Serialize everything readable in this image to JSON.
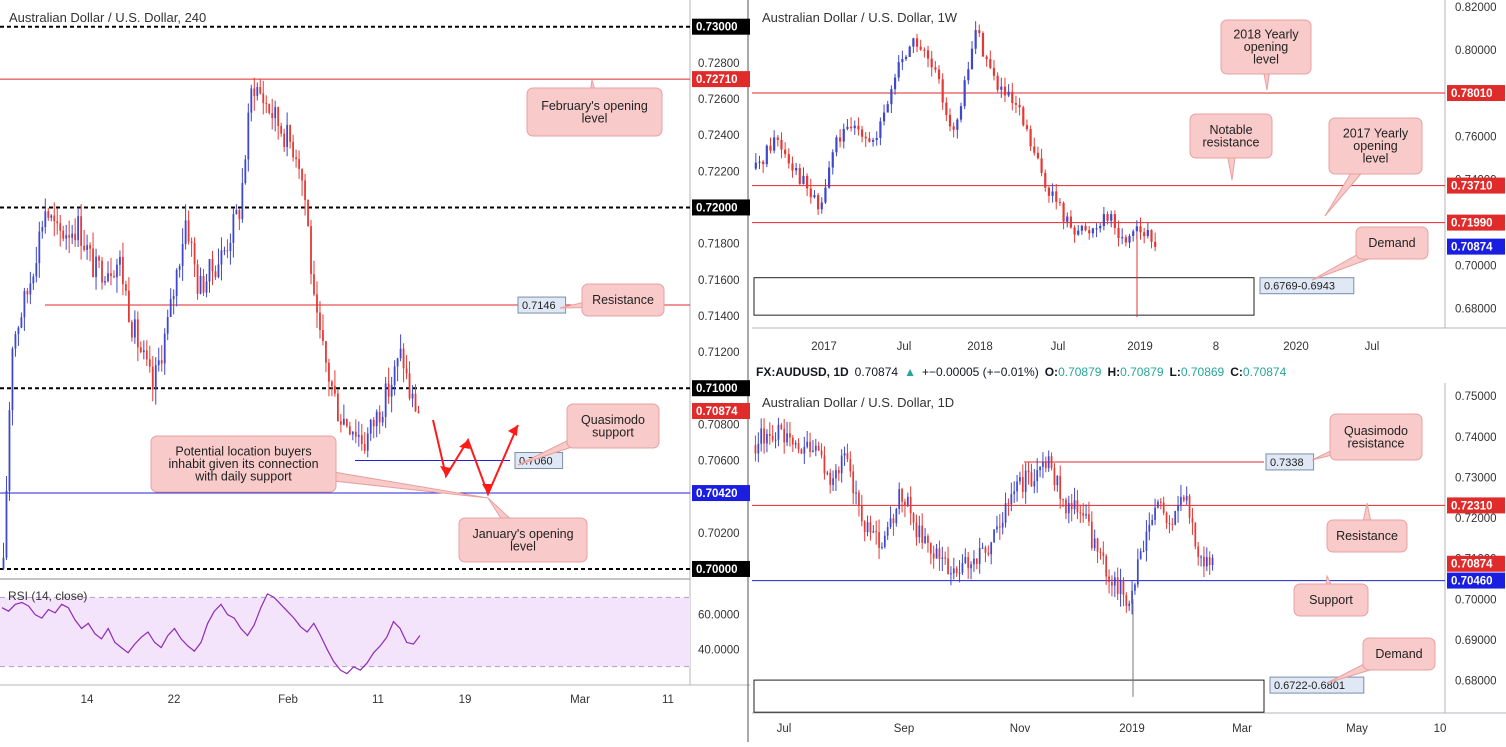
{
  "colors": {
    "bull": "#3f48cc",
    "bear": "#e53935",
    "resistance_line": "#e0272b",
    "support_line": "#1f23d6",
    "callout_fill": "#f8caca",
    "callout_stroke": "#e8a0a0",
    "rsi_fill": "#f3e4fb",
    "rsi_line": "#8e2bb5",
    "price_tag": "#e02b2b",
    "price_tag_blue": "#1a1ee0",
    "arrow": "#ff1a1a"
  },
  "info_bar": {
    "symbol": "FX:AUDUSD, 1D",
    "price": "0.70874",
    "change": "+−0.00005 (+−0.01%)",
    "o_label": "O:",
    "o_value": "0.70879",
    "h_label": "H:",
    "h_value": "0.70879",
    "l_label": "L:",
    "l_value": "0.70869",
    "c_label": "C:",
    "c_value": "0.70874"
  },
  "chart_data": [
    {
      "id": "h4",
      "type": "candlestick",
      "title": "Australian Dollar / U.S. Dollar, 240",
      "x_ticks": [
        "14",
        "22",
        "Feb",
        "11",
        "19",
        "Mar",
        "11"
      ],
      "y_ticks": [
        "0.73000",
        "0.72800",
        "0.72600",
        "0.72400",
        "0.72200",
        "0.72000",
        "0.71800",
        "0.71600",
        "0.71400",
        "0.71200",
        "0.71000",
        "0.70800",
        "0.70600",
        "0.70400",
        "0.70200",
        "0.70000"
      ],
      "ylim": [
        0.6995,
        0.7312
      ],
      "price_tags": [
        {
          "value": 0.73,
          "text": "0.73000",
          "style": "black"
        },
        {
          "value": 0.7271,
          "text": "0.72710",
          "style": "red"
        },
        {
          "value": 0.72,
          "text": "0.72000",
          "style": "black"
        },
        {
          "value": 0.71,
          "text": "0.71000",
          "style": "black"
        },
        {
          "value": 0.70874,
          "text": "0.70874",
          "style": "red"
        },
        {
          "value": 0.7042,
          "text": "0.70420",
          "style": "blue"
        },
        {
          "value": 0.7,
          "text": "0.70000",
          "style": "black"
        }
      ],
      "lines": [
        {
          "value": 0.73,
          "style": "dashed-black"
        },
        {
          "value": 0.7271,
          "style": "red"
        },
        {
          "value": 0.72,
          "style": "dashed-black"
        },
        {
          "value": 0.7146,
          "style": "red",
          "label": "0.7146"
        },
        {
          "value": 0.71,
          "style": "dashed-black"
        },
        {
          "value": 0.706,
          "style": "blue",
          "label": "0.7060"
        },
        {
          "value": 0.7042,
          "style": "blue"
        },
        {
          "value": 0.7,
          "style": "dashed-black"
        }
      ],
      "annotations": [
        "February's opening level",
        "Resistance",
        "Quasimodo support",
        "Potential location buyers inhabit given its connection with daily support",
        "January's opening level"
      ],
      "rsi": {
        "title": "RSI (14, close)",
        "y_ticks": [
          "60.0000",
          "40.0000"
        ],
        "ylim": [
          20,
          80
        ],
        "band": [
          30,
          70
        ],
        "values": [
          64,
          62,
          66,
          67,
          65,
          60,
          58,
          63,
          61,
          66,
          64,
          57,
          52,
          55,
          49,
          46,
          52,
          44,
          41,
          38,
          43,
          47,
          50,
          44,
          41,
          48,
          52,
          46,
          42,
          39,
          44,
          55,
          62,
          66,
          60,
          58,
          52,
          48,
          54,
          64,
          72,
          70,
          66,
          62,
          58,
          53,
          50,
          55,
          48,
          40,
          33,
          28,
          26,
          30,
          28,
          32,
          38,
          42,
          47,
          56,
          52,
          44,
          43,
          48
        ]
      }
    },
    {
      "id": "weekly",
      "type": "candlestick",
      "title": "Australian Dollar / U.S. Dollar, 1W",
      "x_ticks": [
        "2017",
        "Jul",
        "2018",
        "Jul",
        "2019",
        "8",
        "2020",
        "Jul"
      ],
      "y_ticks": [
        "0.82000",
        "0.80000",
        "0.78000",
        "0.76000",
        "0.74000",
        "0.72000",
        "0.70000",
        "0.68000"
      ],
      "ylim": [
        0.67,
        0.821
      ],
      "price_tags": [
        {
          "value": 0.7801,
          "text": "0.78010",
          "style": "red"
        },
        {
          "value": 0.7371,
          "text": "0.73710",
          "style": "red"
        },
        {
          "value": 0.7199,
          "text": "0.71990",
          "style": "red"
        },
        {
          "value": 0.70874,
          "text": "0.70874",
          "style": "blue"
        }
      ],
      "lines": [
        {
          "value": 0.7801,
          "style": "red"
        },
        {
          "value": 0.7371,
          "style": "red"
        },
        {
          "value": 0.7199,
          "style": "red"
        }
      ],
      "zones": [
        {
          "low": 0.6769,
          "high": 0.6943,
          "label": "0.6769-0.6943"
        }
      ],
      "annotations": [
        "2018 Yearly opening level",
        "Notable resistance",
        "2017 Yearly opening level",
        "Demand"
      ]
    },
    {
      "id": "daily",
      "type": "candlestick",
      "title": "Australian Dollar / U.S. Dollar, 1D",
      "x_ticks": [
        "Jul",
        "Sep",
        "Nov",
        "2019",
        "Mar",
        "May",
        "10"
      ],
      "y_ticks": [
        "0.75000",
        "0.74000",
        "0.73000",
        "0.72000",
        "0.71000",
        "0.70000",
        "0.69000",
        "0.68000"
      ],
      "ylim": [
        0.672,
        0.752
      ],
      "price_tags": [
        {
          "value": 0.7231,
          "text": "0.72310",
          "style": "red"
        },
        {
          "value": 0.70874,
          "text": "0.70874",
          "style": "red"
        },
        {
          "value": 0.7046,
          "text": "0.70460",
          "style": "blue"
        }
      ],
      "lines": [
        {
          "value": 0.7338,
          "style": "red",
          "label": "0.7338"
        },
        {
          "value": 0.7231,
          "style": "red"
        },
        {
          "value": 0.7046,
          "style": "blue"
        }
      ],
      "zones": [
        {
          "low": 0.6722,
          "high": 0.6801,
          "label": "0.6722-0.6801"
        }
      ],
      "annotations": [
        "Quasimodo resistance",
        "Resistance",
        "Support",
        "Demand"
      ]
    }
  ]
}
